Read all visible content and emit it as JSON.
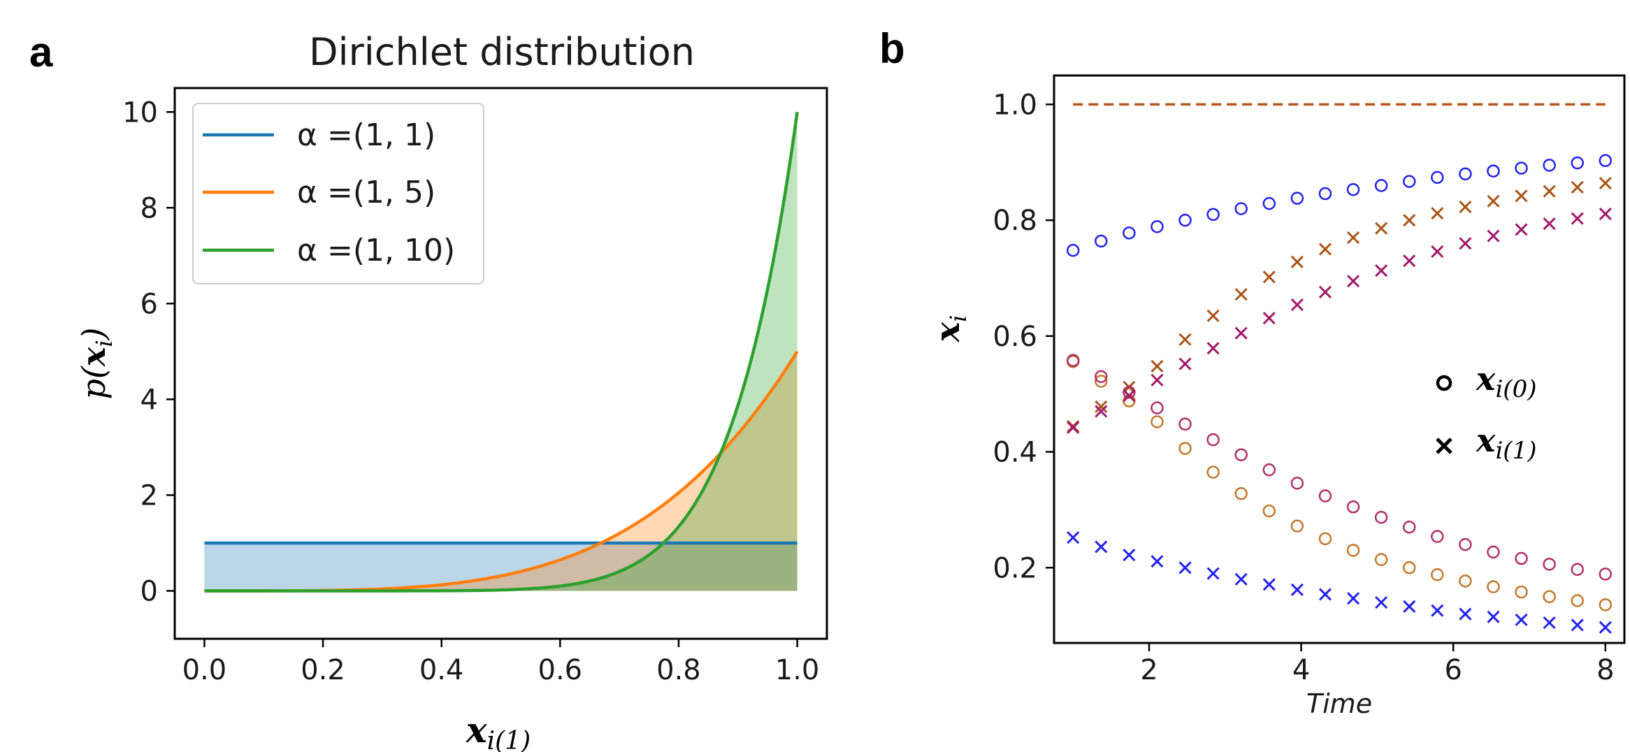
{
  "panel_letters": {
    "a": "a",
    "b": "b"
  },
  "chart_data": [
    {
      "type": "area",
      "panel": "a",
      "title": "Dirichlet distribution",
      "xlabel": {
        "main": "x",
        "sub": "i(1)"
      },
      "ylabel": {
        "prefix": "p(",
        "var": "x",
        "sub": "i",
        "suffix": ")"
      },
      "xlim": [
        -0.05,
        1.05
      ],
      "ylim": [
        -1,
        10.5
      ],
      "xticks": [
        0.0,
        0.2,
        0.4,
        0.6,
        0.8,
        1.0
      ],
      "xtick_labels": [
        "0.0",
        "0.2",
        "0.4",
        "0.6",
        "0.8",
        "1.0"
      ],
      "yticks": [
        0,
        2,
        4,
        6,
        8,
        10
      ],
      "ytick_labels": [
        "0",
        "2",
        "4",
        "6",
        "8",
        "10"
      ],
      "legend_position": "upper-left",
      "series": [
        {
          "name": "α =(1, 1)",
          "label": "α =(1, 1)",
          "beta": 1,
          "color": "#1f77b4"
        },
        {
          "name": "α =(1, 5)",
          "label": "α =(1, 5)",
          "beta": 5,
          "color": "#ff7f0e"
        },
        {
          "name": "α =(1, 10)",
          "label": "α =(1, 10)",
          "beta": 10,
          "color": "#2ca02c"
        }
      ]
    },
    {
      "type": "scatter",
      "panel": "b",
      "xlabel": "Time",
      "ylabel": {
        "var": "x",
        "sub": "i"
      },
      "xlim": [
        0.75,
        8.25
      ],
      "ylim": [
        0.07,
        1.05
      ],
      "xticks": [
        2,
        4,
        6,
        8
      ],
      "xtick_labels": [
        "2",
        "4",
        "6",
        "8"
      ],
      "yticks": [
        0.2,
        0.4,
        0.6,
        0.8,
        1.0
      ],
      "ytick_labels": [
        "0.2",
        "0.4",
        "0.6",
        "0.8",
        "1.0"
      ],
      "legend_position": "center-right",
      "legend": [
        {
          "marker": "circle",
          "main": "x",
          "sub": "i(0)"
        },
        {
          "marker": "x",
          "main": "x",
          "sub": "i(1)"
        }
      ],
      "reference_line": {
        "y": 1.0,
        "x_range": [
          1,
          8
        ],
        "style": "dashed",
        "color": "#b5561b"
      },
      "x": [
        1.0,
        1.3684,
        1.7368,
        2.1053,
        2.4737,
        2.8421,
        3.2105,
        3.5789,
        3.9474,
        4.3158,
        4.6842,
        5.0526,
        5.4211,
        5.7895,
        6.1579,
        6.5263,
        6.8947,
        7.2632,
        7.6316,
        8.0
      ],
      "series": [
        {
          "name": "blue x_i(0)",
          "marker": "circle",
          "color": "#2222f0",
          "values": [
            0.748,
            0.764,
            0.778,
            0.789,
            0.8,
            0.81,
            0.82,
            0.829,
            0.838,
            0.846,
            0.853,
            0.86,
            0.867,
            0.874,
            0.88,
            0.885,
            0.89,
            0.895,
            0.899,
            0.903
          ]
        },
        {
          "name": "blue x_i(1)",
          "marker": "x",
          "color": "#2222f0",
          "values": [
            0.252,
            0.236,
            0.222,
            0.211,
            0.2,
            0.19,
            0.18,
            0.171,
            0.162,
            0.154,
            0.147,
            0.14,
            0.133,
            0.126,
            0.12,
            0.115,
            0.11,
            0.105,
            0.101,
            0.097
          ]
        },
        {
          "name": "orange x_i(0)",
          "marker": "circle",
          "color": "#c0782a",
          "values": [
            0.556,
            0.522,
            0.488,
            0.452,
            0.406,
            0.365,
            0.328,
            0.298,
            0.272,
            0.25,
            0.23,
            0.214,
            0.2,
            0.188,
            0.177,
            0.167,
            0.158,
            0.15,
            0.143,
            0.136
          ]
        },
        {
          "name": "orange x_i(1)",
          "marker": "x",
          "color": "#a85418",
          "values": [
            0.444,
            0.478,
            0.512,
            0.548,
            0.594,
            0.635,
            0.672,
            0.702,
            0.728,
            0.75,
            0.77,
            0.786,
            0.8,
            0.812,
            0.823,
            0.833,
            0.842,
            0.85,
            0.857,
            0.864
          ]
        },
        {
          "name": "magenta x_i(0)",
          "marker": "circle",
          "color": "#b0306a",
          "values": [
            0.558,
            0.53,
            0.503,
            0.476,
            0.448,
            0.421,
            0.395,
            0.369,
            0.346,
            0.324,
            0.305,
            0.287,
            0.27,
            0.254,
            0.24,
            0.227,
            0.216,
            0.206,
            0.197,
            0.189
          ]
        },
        {
          "name": "magenta x_i(1)",
          "marker": "x",
          "color": "#a01a6a",
          "values": [
            0.442,
            0.47,
            0.497,
            0.524,
            0.552,
            0.579,
            0.605,
            0.631,
            0.654,
            0.676,
            0.695,
            0.713,
            0.73,
            0.746,
            0.76,
            0.773,
            0.784,
            0.794,
            0.803,
            0.811
          ]
        }
      ]
    }
  ]
}
